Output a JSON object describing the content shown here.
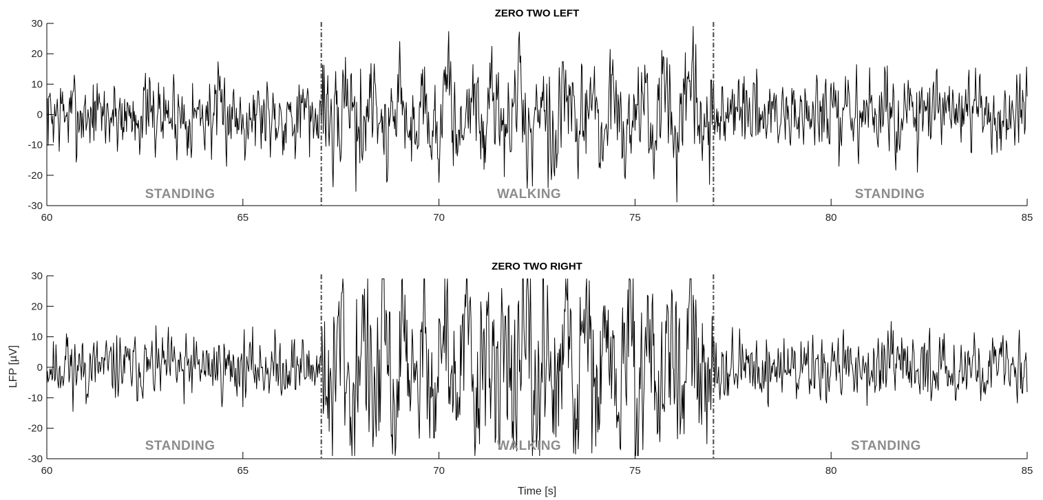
{
  "chart_data": [
    {
      "type": "line",
      "title": "ZERO TWO LEFT",
      "xlabel": "",
      "ylabel": "",
      "xlim": [
        60,
        85
      ],
      "ylim": [
        -30,
        30
      ],
      "xticks": [
        60,
        65,
        70,
        75,
        80,
        85
      ],
      "yticks": [
        -30,
        -20,
        -10,
        0,
        10,
        20,
        30
      ],
      "markers": [
        67,
        77
      ],
      "phases": [
        {
          "label": "STANDING",
          "x": 63.4
        },
        {
          "label": "WALKING",
          "x": 72.3
        },
        {
          "label": "STANDING",
          "x": 81.5
        }
      ],
      "series": [
        {
          "sample_rate_hz": 60,
          "x_start": 60,
          "segments": [
            {
              "until": 67,
              "amplitude": 6.5,
              "osc_hz": 0
            },
            {
              "until": 77,
              "amplitude": 8.5,
              "osc_hz": 1.6
            },
            {
              "until": 85,
              "amplitude": 6.5,
              "osc_hz": 0
            }
          ],
          "spikes": [
            [
              60.7,
              13
            ],
            [
              66.7,
              -14
            ],
            [
              68.0,
              15
            ],
            [
              71.3,
              17
            ],
            [
              74.1,
              -16
            ],
            [
              76.9,
              -23
            ],
            [
              78.1,
              15
            ],
            [
              80.2,
              -17
            ],
            [
              82.2,
              -19
            ],
            [
              82.7,
              15
            ]
          ],
          "seed": 7
        }
      ]
    },
    {
      "type": "line",
      "title": "ZERO TWO RIGHT",
      "xlabel": "Time [s]",
      "ylabel": "LFP [µV]",
      "xlim": [
        60,
        85
      ],
      "ylim": [
        -30,
        30
      ],
      "xticks": [
        60,
        65,
        70,
        75,
        80,
        85
      ],
      "yticks": [
        -30,
        -20,
        -10,
        0,
        10,
        20,
        30
      ],
      "markers": [
        67,
        77
      ],
      "phases": [
        {
          "label": "STANDING",
          "x": 63.4
        },
        {
          "label": "WALKING",
          "x": 72.3
        },
        {
          "label": "STANDING",
          "x": 81.4
        }
      ],
      "series": [
        {
          "sample_rate_hz": 60,
          "x_start": 60,
          "segments": [
            {
              "until": 67,
              "amplitude": 5,
              "osc_hz": 0
            },
            {
              "until": 77,
              "amplitude": 13,
              "osc_hz": 1.9
            },
            {
              "until": 85,
              "amplitude": 5,
              "osc_hz": 0
            }
          ],
          "spikes": [
            [
              60.5,
              11
            ],
            [
              61.0,
              -12
            ],
            [
              63.5,
              -12
            ],
            [
              68.5,
              -18
            ],
            [
              70.0,
              16
            ],
            [
              71.0,
              -20
            ],
            [
              73.2,
              19
            ],
            [
              73.7,
              19
            ],
            [
              74.1,
              -18
            ],
            [
              78.4,
              -13
            ]
          ],
          "seed": 11
        }
      ]
    }
  ]
}
